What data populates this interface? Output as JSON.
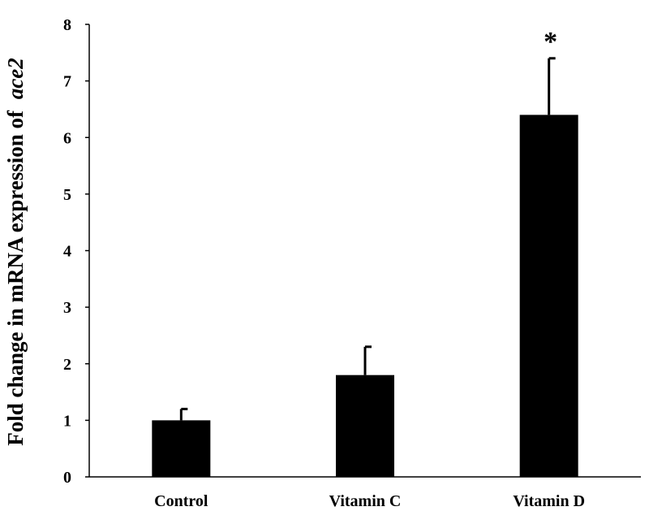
{
  "chart_data": {
    "type": "bar",
    "categories": [
      "Control",
      "Vitamin C",
      "Vitamin D"
    ],
    "values": [
      1.0,
      1.8,
      6.4
    ],
    "error_upper": [
      0.2,
      0.5,
      1.0
    ],
    "annotations": [
      "",
      "",
      "*"
    ],
    "ylabel": "Fold change in mRNA expression of",
    "ylabel_italic": "ace2",
    "ylim": [
      0,
      8
    ],
    "yticks": [
      "0",
      "1",
      "2",
      "3",
      "4",
      "5",
      "6",
      "7",
      "8"
    ],
    "grid": false,
    "bar_color": "#000000"
  }
}
